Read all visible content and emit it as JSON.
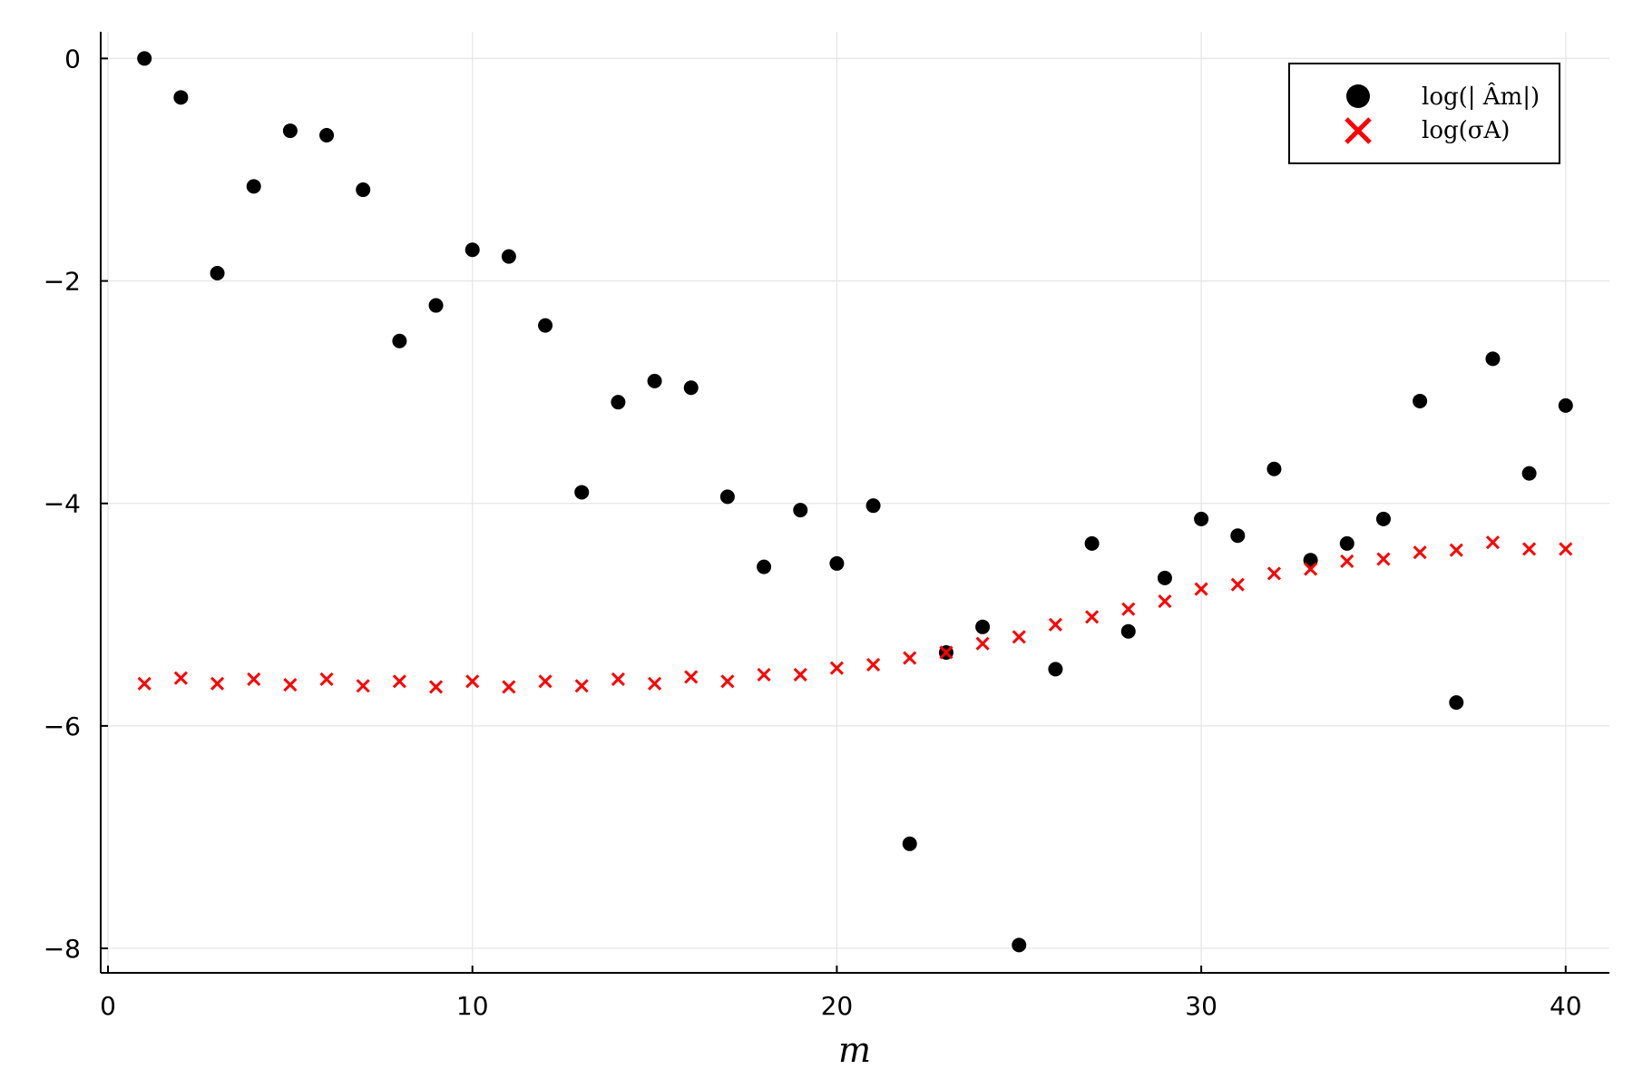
{
  "chart_data": {
    "type": "scatter",
    "xlabel": "m",
    "ylabel": "",
    "xlim": [
      -0.2,
      41.2
    ],
    "ylim": [
      -8.22,
      0.24
    ],
    "xticks": [
      0,
      10,
      20,
      30,
      40
    ],
    "xtick_labels": [
      "0",
      "10",
      "20",
      "30",
      "40"
    ],
    "yticks": [
      0,
      -2,
      -4,
      -6,
      -8
    ],
    "ytick_labels": [
      "0",
      "−2",
      "−4",
      "−6",
      "−8"
    ],
    "grid": true,
    "legend_position": "top-right",
    "series": [
      {
        "name": "log(| Âm|)",
        "marker": "circle",
        "color": "#000000",
        "x": [
          1,
          2,
          3,
          4,
          5,
          6,
          7,
          8,
          9,
          10,
          11,
          12,
          13,
          14,
          15,
          16,
          17,
          18,
          19,
          20,
          21,
          22,
          23,
          24,
          25,
          26,
          27,
          28,
          29,
          30,
          31,
          32,
          33,
          34,
          35,
          36,
          37,
          38,
          39,
          40
        ],
        "y": [
          0.0,
          -0.35,
          -1.93,
          -1.15,
          -0.65,
          -0.69,
          -1.18,
          -2.54,
          -2.22,
          -1.72,
          -1.78,
          -2.4,
          -3.9,
          -3.09,
          -2.9,
          -2.96,
          -3.94,
          -4.57,
          -4.06,
          -4.54,
          -4.02,
          -7.06,
          -5.34,
          -5.11,
          -7.97,
          -5.49,
          -4.36,
          -5.15,
          -4.67,
          -4.14,
          -4.29,
          -3.69,
          -4.51,
          -4.36,
          -4.14,
          -3.08,
          -5.79,
          -2.7,
          -3.73,
          -3.12
        ]
      },
      {
        "name": "log(σA)",
        "marker": "x",
        "color": "#ff0000",
        "x": [
          1,
          2,
          3,
          4,
          5,
          6,
          7,
          8,
          9,
          10,
          11,
          12,
          13,
          14,
          15,
          16,
          17,
          18,
          19,
          20,
          21,
          22,
          23,
          24,
          25,
          26,
          27,
          28,
          29,
          30,
          31,
          32,
          33,
          34,
          35,
          36,
          37,
          38,
          39,
          40
        ],
        "y": [
          -5.62,
          -5.57,
          -5.62,
          -5.58,
          -5.63,
          -5.58,
          -5.64,
          -5.6,
          -5.65,
          -5.6,
          -5.65,
          -5.6,
          -5.64,
          -5.58,
          -5.62,
          -5.56,
          -5.6,
          -5.54,
          -5.54,
          -5.48,
          -5.45,
          -5.39,
          -5.34,
          -5.26,
          -5.2,
          -5.09,
          -5.02,
          -4.95,
          -4.88,
          -4.77,
          -4.73,
          -4.63,
          -4.59,
          -4.52,
          -4.5,
          -4.44,
          -4.42,
          -4.35,
          -4.41,
          -4.41
        ]
      }
    ]
  }
}
